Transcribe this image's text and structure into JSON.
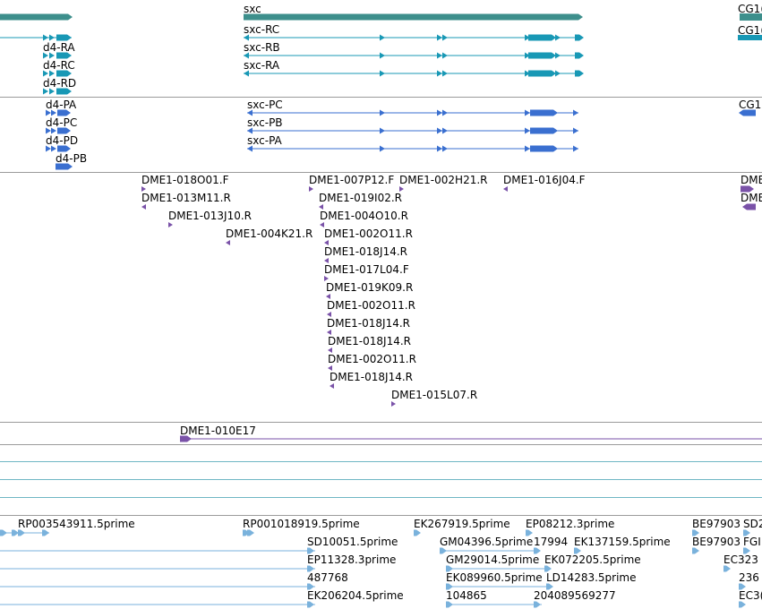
{
  "colors": {
    "gene": "#3d8f8c",
    "transcript_rna": "#1898b5",
    "transcript_protein": "#3a6fd0",
    "clone_end": "#7a52a8",
    "clone": "#7a52a8",
    "est": "#7ab2dc",
    "separator": "#9b9b9b",
    "empty_track": "#6fb6c4"
  },
  "genes": {
    "sxc": "sxc",
    "cg_partial": "CG1("
  },
  "rna": {
    "cg_partial": "CG1(",
    "d4": [
      "d4-RA",
      "d4-RC",
      "d4-RD"
    ],
    "sxc": [
      "sxc-RC",
      "sxc-RB",
      "sxc-RA"
    ]
  },
  "protein": {
    "cg_partial": "CG1",
    "d4": [
      "d4-PA",
      "d4-PC",
      "d4-PD",
      "d4-PB"
    ],
    "sxc": [
      "sxc-PC",
      "sxc-PB",
      "sxc-PA"
    ]
  },
  "clone_ends": [
    "DME1-018O01.F",
    "DME1-007P12.F",
    "DME1-002H21.R",
    "DME1-016J04.F",
    "DME1-013M11.R",
    "DME1-019I02.R",
    "DME1-013J10.R",
    "DME1-004O10.R",
    "DME1-004K21.R",
    "DME1-002O11.R",
    "DME1-018J14.R",
    "DME1-017L04.F",
    "DME1-019K09.R",
    "DME1-002O11.R",
    "DME1-018J14.R",
    "DME1-018J14.R",
    "DME1-002O11.R",
    "DME1-018J14.R",
    "DME1-015L07.R",
    "DME",
    "DME"
  ],
  "clone": "DME1-010E17",
  "ests": [
    "RP003543911.5prime",
    "RP001018919.5prime",
    "EK267919.5prime",
    "EP08212.3prime",
    "BE97903",
    "SD2",
    "SD10051.5prime",
    "GM04396.5prime",
    "17994",
    "EK137159.5prime",
    "BE97903",
    "FGI",
    "EP11328.3prime",
    "GM29014.5prime",
    "EK072205.5prime",
    "EC323",
    "487768",
    "EK089960.5prime",
    "LD14283.5prime",
    "236",
    "EK206204.5prime",
    "104865",
    "204089569277",
    "EC3("
  ]
}
